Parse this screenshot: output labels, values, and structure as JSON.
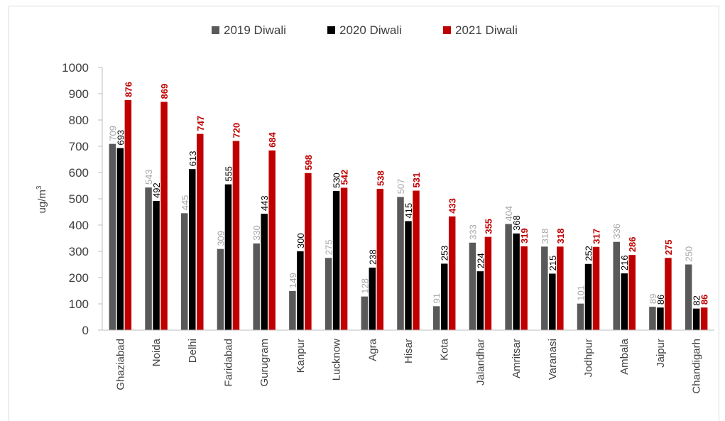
{
  "chart_data": {
    "type": "bar",
    "title": "",
    "xlabel": "",
    "ylabel": "ug/m",
    "ylabel_superscript": "3",
    "ylim": [
      0,
      1000
    ],
    "yticks": [
      0,
      100,
      200,
      300,
      400,
      500,
      600,
      700,
      800,
      900,
      1000
    ],
    "legend_position": "top",
    "grid": false,
    "categories": [
      "Ghaziabad",
      "Noida",
      "Delhi",
      "Faridabad",
      "Gurugram",
      "Kanpur",
      "Lucknow",
      "Agra",
      "Hisar",
      "Kota",
      "Jalandhar",
      "Amritsar",
      "Varanasi",
      "Jodhpur",
      "Ambala",
      "Jaipur",
      "Chandigarh"
    ],
    "series": [
      {
        "name": "2019 Diwali",
        "color": "#595959",
        "label_color": "#a6a6a6",
        "label_bold": false,
        "values": [
          709,
          543,
          445,
          309,
          330,
          149,
          275,
          128,
          507,
          91,
          333,
          404,
          318,
          101,
          336,
          89,
          250
        ]
      },
      {
        "name": "2020 Diwali",
        "color": "#000000",
        "label_color": "#000000",
        "label_bold": false,
        "values": [
          693,
          492,
          613,
          555,
          443,
          300,
          530,
          238,
          415,
          253,
          224,
          368,
          215,
          252,
          216,
          86,
          82
        ]
      },
      {
        "name": "2021 Diwali",
        "color": "#c00000",
        "label_color": "#c00000",
        "label_bold": true,
        "values": [
          876,
          869,
          747,
          720,
          684,
          598,
          542,
          538,
          531,
          433,
          355,
          319,
          318,
          317,
          286,
          275,
          86
        ]
      }
    ]
  }
}
